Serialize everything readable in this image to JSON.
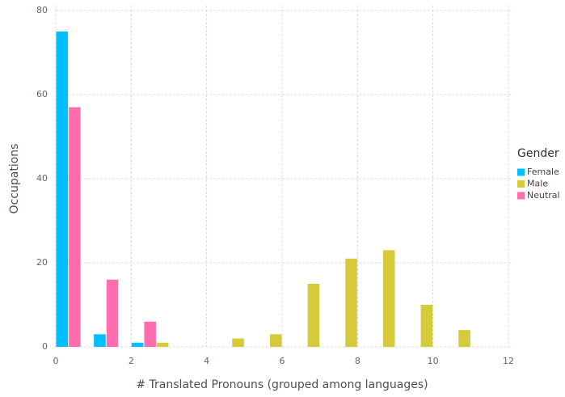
{
  "chart_data": {
    "type": "bar",
    "x_label": "# Translated Pronouns (grouped among languages)",
    "y_label": "Occupations",
    "legend_title": "Gender",
    "x": [
      0,
      1,
      2,
      3,
      4,
      5,
      6,
      7,
      8,
      9,
      10
    ],
    "series": [
      {
        "name": "Female",
        "color": "#00bfff",
        "values": [
          75,
          3,
          1,
          null,
          null,
          null,
          null,
          null,
          null,
          null,
          null
        ]
      },
      {
        "name": "Male",
        "color": "#d4ca3a",
        "values": [
          null,
          null,
          1,
          null,
          2,
          3,
          15,
          21,
          23,
          10,
          4
        ]
      },
      {
        "name": "Neutral",
        "color": "#ff6dae",
        "values": [
          57,
          16,
          6,
          null,
          null,
          null,
          null,
          null,
          null,
          null,
          null
        ]
      }
    ],
    "xlim": [
      0,
      12
    ],
    "xticks": [
      0,
      2,
      4,
      6,
      8,
      10,
      12
    ],
    "ylim": [
      0,
      80
    ],
    "yticks": [
      0,
      20,
      40,
      60,
      80
    ],
    "grid": true,
    "legend": "right"
  }
}
